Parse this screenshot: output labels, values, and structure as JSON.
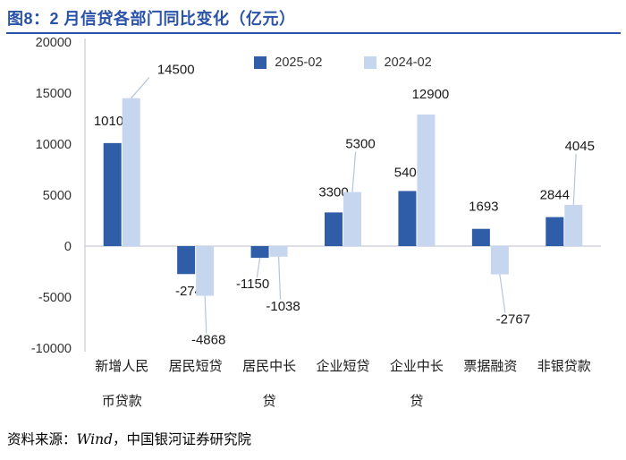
{
  "title": "图8：2 月信贷各部门同比变化（亿元）",
  "footer": {
    "prefix": "资料来源：",
    "source": "Wind",
    "suffix": "，中国银河证券研究院"
  },
  "colors": {
    "title_blue": "#2A52A8",
    "divider_blue": "#2A52A8",
    "bar_2025": "#2F5DA8",
    "bar_2024": "#C6D6EE",
    "axis_gray": "#C9CCD3",
    "leader_line": "#B4C5DE",
    "label_text": "#1A1A1A",
    "tick_text": "#333333"
  },
  "chart_data": {
    "type": "bar",
    "title": "2 月信贷各部门同比变化（亿元）",
    "unit": "亿元",
    "categories": [
      {
        "label": "新增人民币贷款",
        "lines": [
          "新增人民",
          "币贷款"
        ]
      },
      {
        "label": "居民短贷",
        "lines": [
          "居民短贷"
        ]
      },
      {
        "label": "居民中长贷",
        "lines": [
          "居民中长",
          "贷"
        ]
      },
      {
        "label": "企业短贷",
        "lines": [
          "企业短贷"
        ]
      },
      {
        "label": "企业中长贷",
        "lines": [
          "企业中长",
          "贷"
        ]
      },
      {
        "label": "票据融资",
        "lines": [
          "票据融资"
        ]
      },
      {
        "label": "非银贷款",
        "lines": [
          "非银贷款"
        ]
      }
    ],
    "series": [
      {
        "name": "2025-02",
        "color": "#2F5DA8",
        "values": [
          10100,
          -2741,
          -1150,
          3300,
          5400,
          1693,
          2844
        ],
        "label_offsets": [
          {
            "dx": 0,
            "dy": -20,
            "leader": false
          },
          {
            "dx": 7,
            "dy": 24,
            "leader": false
          },
          {
            "dx": -8,
            "dy": 34,
            "leader": true
          },
          {
            "dx": 0,
            "dy": -18,
            "leader": false
          },
          {
            "dx": 2,
            "dy": -16,
            "leader": false
          },
          {
            "dx": 3,
            "dy": -20,
            "leader": false
          },
          {
            "dx": 0,
            "dy": -20,
            "leader": false
          }
        ]
      },
      {
        "name": "2024-02",
        "color": "#C6D6EE",
        "values": [
          14500,
          -4868,
          -1038,
          5300,
          12900,
          -2767,
          4045
        ],
        "label_offsets": [
          {
            "dx": 50,
            "dy": -27,
            "leader": true
          },
          {
            "dx": 4,
            "dy": 54,
            "leader": true
          },
          {
            "dx": 5,
            "dy": 60,
            "leader": true
          },
          {
            "dx": 9,
            "dy": -49,
            "leader": true
          },
          {
            "dx": 5,
            "dy": -18,
            "leader": false
          },
          {
            "dx": 15,
            "dy": 55,
            "leader": true
          },
          {
            "dx": 7,
            "dy": -61,
            "leader": true
          }
        ]
      }
    ],
    "ylim": [
      -10000,
      20000
    ],
    "yticks": [
      20000,
      15000,
      10000,
      5000,
      0,
      -5000,
      -10000
    ],
    "legend_position": "top-center",
    "grid": false
  }
}
